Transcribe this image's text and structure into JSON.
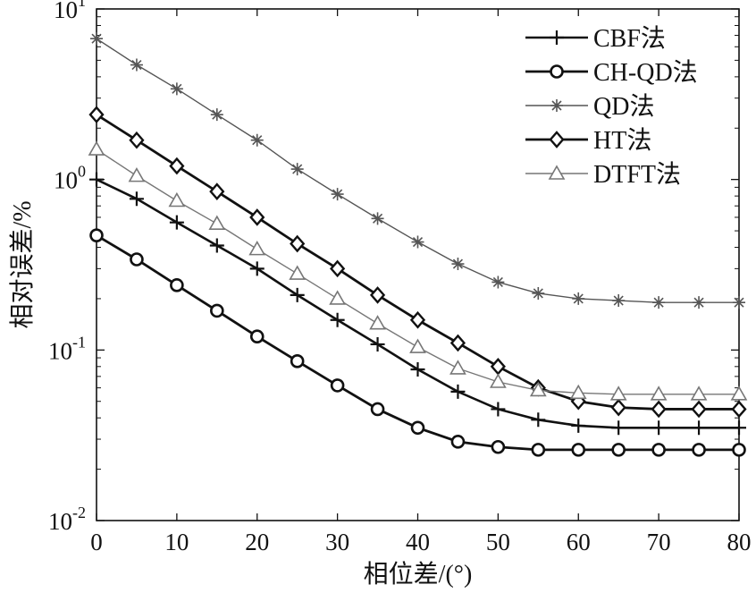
{
  "chart_data": {
    "type": "line",
    "title": "",
    "xlabel": "相位差/(°)",
    "ylabel": "相对误差/%",
    "xlim": [
      0,
      80
    ],
    "ylim": [
      0.01,
      10
    ],
    "yscale": "log",
    "x_ticks": [
      "0",
      "10",
      "20",
      "30",
      "40",
      "50",
      "60",
      "70",
      "80"
    ],
    "y_ticks": [
      {
        "base": "10",
        "exp": "-2"
      },
      {
        "base": "10",
        "exp": "-1"
      },
      {
        "base": "10",
        "exp": "0"
      },
      {
        "base": "10",
        "exp": "1"
      }
    ],
    "grid": false,
    "legend_position": "top-right",
    "x": [
      0,
      5,
      10,
      15,
      20,
      25,
      30,
      35,
      40,
      45,
      50,
      55,
      60,
      65,
      70,
      75,
      80
    ],
    "series": [
      {
        "name": "CBF法",
        "marker": "plus",
        "color": "#111111",
        "values": [
          1.0,
          0.77,
          0.56,
          0.41,
          0.3,
          0.21,
          0.15,
          0.108,
          0.077,
          0.057,
          0.045,
          0.039,
          0.036,
          0.035,
          0.035,
          0.035,
          0.035
        ]
      },
      {
        "name": "CH-QD法",
        "marker": "circle",
        "color": "#111111",
        "values": [
          0.47,
          0.34,
          0.24,
          0.17,
          0.12,
          0.086,
          0.062,
          0.045,
          0.035,
          0.029,
          0.027,
          0.026,
          0.026,
          0.026,
          0.026,
          0.026,
          0.026
        ]
      },
      {
        "name": "QD法",
        "marker": "star",
        "color": "#555555",
        "values": [
          6.7,
          4.7,
          3.4,
          2.4,
          1.7,
          1.15,
          0.82,
          0.59,
          0.43,
          0.32,
          0.25,
          0.215,
          0.2,
          0.195,
          0.19,
          0.19,
          0.19
        ]
      },
      {
        "name": "HT法",
        "marker": "diamond",
        "color": "#111111",
        "values": [
          2.4,
          1.7,
          1.2,
          0.85,
          0.6,
          0.42,
          0.3,
          0.21,
          0.15,
          0.11,
          0.08,
          0.06,
          0.05,
          0.046,
          0.045,
          0.045,
          0.045
        ]
      },
      {
        "name": "DTFT法",
        "marker": "triangle",
        "color": "#777777",
        "values": [
          1.5,
          1.05,
          0.75,
          0.55,
          0.39,
          0.28,
          0.2,
          0.143,
          0.104,
          0.078,
          0.065,
          0.058,
          0.056,
          0.055,
          0.055,
          0.055,
          0.055
        ]
      }
    ]
  }
}
